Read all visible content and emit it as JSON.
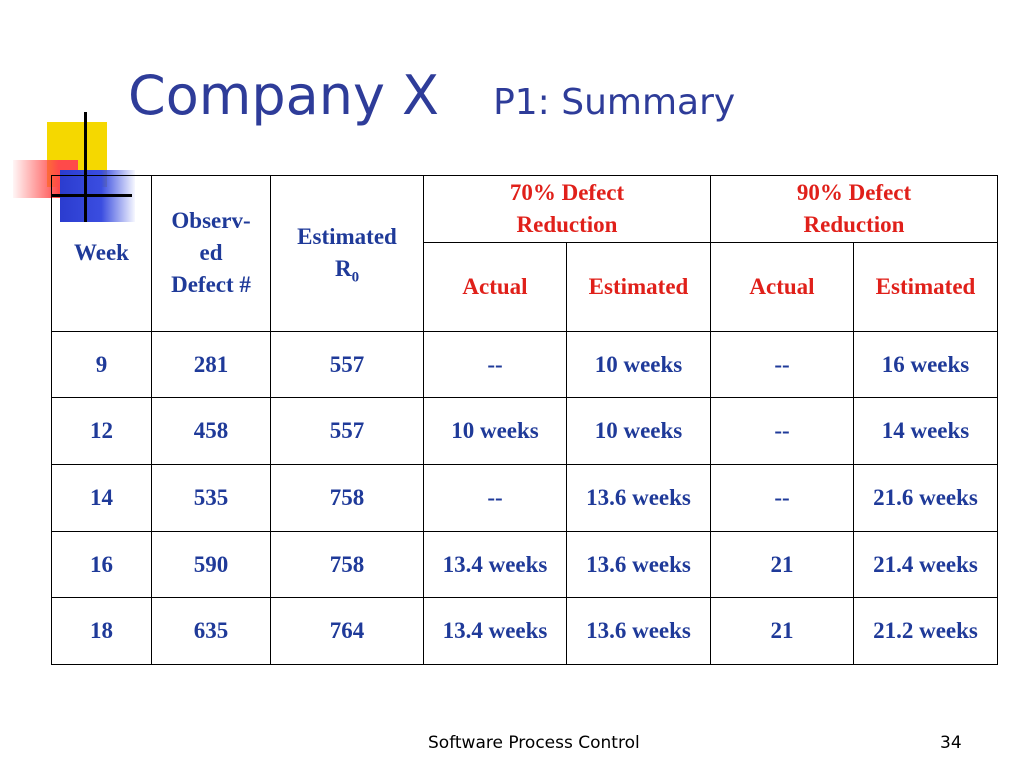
{
  "slide": {
    "title": "Company X",
    "subtitle": "P1: Summary"
  },
  "table": {
    "headers": {
      "week": "Week",
      "observed": "Observ-ed Defect #",
      "observed_lines": [
        "Observ-",
        "ed",
        "Defect #"
      ],
      "estimated": "Estimated",
      "r0_base": "R",
      "r0_sub": "0",
      "group70": "70% Defect Reduction",
      "group70_lines": [
        "70% Defect",
        "Reduction"
      ],
      "group90": "90% Defect Reduction",
      "group90_lines": [
        "90% Defect",
        "Reduction"
      ],
      "actual": "Actual",
      "estimated_col": "Estimated"
    },
    "rows": [
      {
        "week": "9",
        "observed": "281",
        "r0": "557",
        "a70": "--",
        "e70": "10 weeks",
        "a90": "--",
        "e90": "16 weeks"
      },
      {
        "week": "12",
        "observed": "458",
        "r0": "557",
        "a70": "10 weeks",
        "e70": "10 weeks",
        "a90": "--",
        "e90": "14 weeks"
      },
      {
        "week": "14",
        "observed": "535",
        "r0": "758",
        "a70": "--",
        "e70": "13.6 weeks",
        "a90": "--",
        "e90": "21.6 weeks"
      },
      {
        "week": "16",
        "observed": "590",
        "r0": "758",
        "a70": "13.4 weeks",
        "e70": "13.6 weeks",
        "a90": "21",
        "e90": "21.4 weeks"
      },
      {
        "week": "18",
        "observed": "635",
        "r0": "764",
        "a70": "13.4 weeks",
        "e70": "13.6 weeks",
        "a90": "21",
        "e90": "21.2 weeks"
      }
    ]
  },
  "footer": {
    "text": "Software Process Control",
    "page": "34"
  },
  "colors": {
    "title": "#2e3c99",
    "cell_text": "#1f3a99",
    "group_header": "#e0201a",
    "deco_yellow": "#f5d800",
    "deco_red": "#ff4a4a",
    "deco_blue": "#2b3ccf"
  }
}
